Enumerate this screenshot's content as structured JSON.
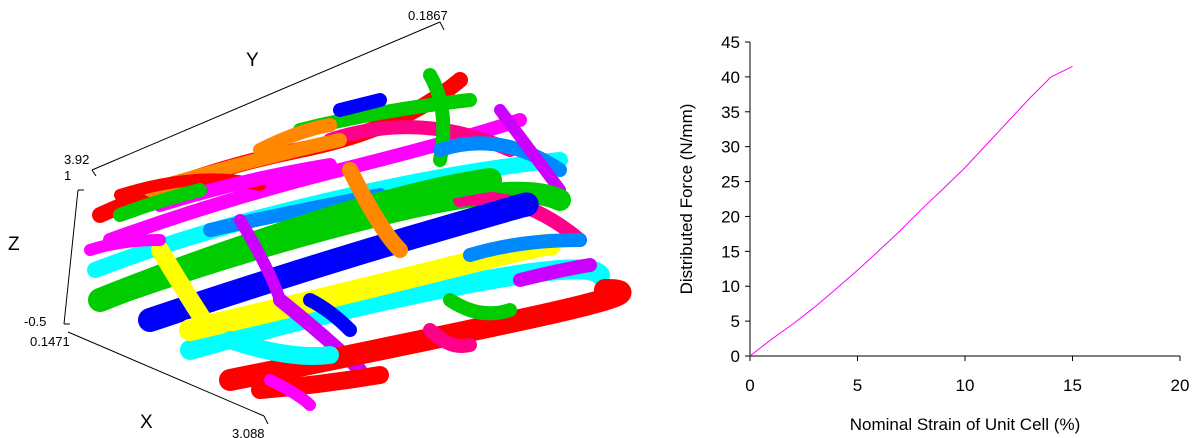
{
  "scene3d": {
    "axis_labels": {
      "x": "X",
      "y": "Y",
      "z": "Z"
    },
    "bound_labels": {
      "y_max": "0.1867",
      "x_max": "3.92",
      "z_max": "1",
      "z_min": "-0.5",
      "x_min": "0.1471",
      "x_end": "3.088"
    },
    "tube_colors": [
      "#ff0000",
      "#00cc00",
      "#0000ff",
      "#ffff00",
      "#00ffff",
      "#ff00ff",
      "#ff8800",
      "#88ff00",
      "#0088ff",
      "#ff0088",
      "#cc00ff"
    ]
  },
  "chart_data": {
    "type": "line",
    "title": "",
    "xlabel": "Nominal Strain of Unit Cell (%)",
    "ylabel": "Distributed Force (N/mm)",
    "xlim": [
      0,
      20
    ],
    "ylim": [
      0,
      45
    ],
    "xticks": [
      0,
      5,
      10,
      15,
      20
    ],
    "yticks": [
      0,
      5,
      10,
      15,
      20,
      25,
      30,
      35,
      40,
      45
    ],
    "grid": false,
    "legend": "none",
    "series": [
      {
        "color": "#ff00ff",
        "x": [
          0,
          1,
          2,
          3,
          4,
          5,
          6,
          7,
          8,
          9,
          10,
          11,
          12,
          13,
          14,
          15
        ],
        "y": [
          0,
          2.4,
          4.6,
          7.0,
          9.6,
          12.3,
          15.1,
          18.0,
          21.1,
          24.0,
          27.0,
          30.3,
          33.6,
          36.9,
          40.0,
          41.5
        ]
      }
    ]
  }
}
